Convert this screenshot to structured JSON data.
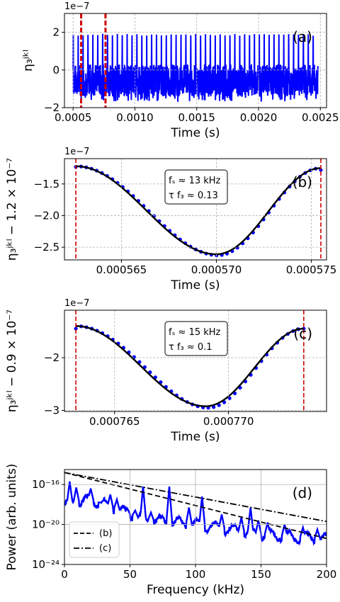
{
  "colors": {
    "series": "#0000ff",
    "marker": "#d00000",
    "fit": "#000000",
    "grid": "#b0b0b0"
  },
  "chart_data": [
    {
      "type": "line",
      "panel_label": "(a)",
      "xlabel": "Time (s)",
      "ylabel": "η₃ʲᵏˡ",
      "offset_text": "1e−7",
      "xlim": [
        0.00043,
        0.00255
      ],
      "ylim": [
        -2,
        3
      ],
      "xticks": [
        0.0005,
        0.001,
        0.0015,
        0.002,
        0.0025
      ],
      "xtick_labels": [
        "0.0005",
        "0.0010",
        "0.0015",
        "0.0020",
        "0.0025"
      ],
      "yticks": [
        -2,
        0,
        2
      ],
      "ytick_labels": [
        "−2",
        "0",
        "2"
      ],
      "grid": true,
      "signal": {
        "t_start": 0.0005,
        "t_end": 0.00248,
        "num_spikes": 50,
        "spike_peak": 2.5,
        "baseline_range": [
          -1.4,
          0.3
        ],
        "min_dip": -1.7
      },
      "vlines": [
        0.000565,
        0.000762
      ]
    },
    {
      "type": "scatter",
      "panel_label": "(b)",
      "xlabel": "Time (s)",
      "ylabel": "η₃ʲᵏˡ − 1.2 × 10⁻⁷",
      "offset_text": "1e−7",
      "annotation": [
        "fₛ ≈ 13 kHz",
        "τ f₃ ≈  0.13"
      ],
      "xlim": [
        0.000562,
        0.0005758
      ],
      "ylim": [
        -2.7,
        -1.1
      ],
      "xticks": [
        0.000565,
        0.00057,
        0.000575
      ],
      "xtick_labels": [
        "0.000565",
        "0.000570",
        "0.000575"
      ],
      "yticks": [
        -2.5,
        -2.0,
        -1.5
      ],
      "ytick_labels": [
        "−2.5",
        "−2.0",
        "−1.5"
      ],
      "grid": true,
      "curve": {
        "t0": 0.0005626,
        "t1": 0.0005755,
        "t_min": 0.00057,
        "y_min": -2.61,
        "y_left": -1.22,
        "y_right": -1.25
      },
      "points": {
        "count": 48,
        "left_value": -1.23,
        "right_value": -1.28
      },
      "vlines": [
        0.0005626,
        0.0005755
      ]
    },
    {
      "type": "scatter",
      "panel_label": "(c)",
      "xlabel": "Time (s)",
      "ylabel": "η₃ʲᵏˡ − 0.9 × 10⁻⁷",
      "offset_text": "1e−7",
      "annotation": [
        "fₛ ≈ 15 kHz",
        "τ f₃ ≈  0.1"
      ],
      "xlim": [
        0.0007628,
        0.0007743
      ],
      "ylim": [
        -3.02,
        -1.1
      ],
      "xticks": [
        0.000765,
        0.00077
      ],
      "xtick_labels": [
        "0.000765",
        "0.000770"
      ],
      "yticks": [
        -3,
        -2
      ],
      "ytick_labels": [
        "−3",
        "−2"
      ],
      "grid": true,
      "curve": {
        "t0": 0.0007633,
        "t1": 0.0007733,
        "t_min": 0.000769,
        "y_min": -2.92,
        "y_left": -1.4,
        "y_right": -1.45
      },
      "points": {
        "count": 44,
        "left_value": -1.45,
        "right_value": -1.45
      },
      "vlines": [
        0.0007633,
        0.0007733
      ]
    },
    {
      "type": "line",
      "panel_label": "(d)",
      "xlabel": "Frequency (kHz)",
      "ylabel": "Power (arb. units)",
      "xlim": [
        0,
        200
      ],
      "ylim_log10": [
        -24,
        -14.5
      ],
      "yscale": "log",
      "xticks": [
        0,
        50,
        100,
        150,
        200
      ],
      "xtick_labels": [
        "0",
        "50",
        "100",
        "150",
        "200"
      ],
      "yticks_log10": [
        -24,
        -20,
        -16
      ],
      "ytick_labels": [
        "10⁻²⁴",
        "10⁻²⁰",
        "10⁻¹⁶"
      ],
      "grid": true,
      "legend": {
        "position": "lower-left",
        "entries": [
          {
            "label": "(b)",
            "style": "dashed"
          },
          {
            "label": "(c)",
            "style": "dashdot"
          }
        ]
      },
      "series": [
        {
          "name": "(b)",
          "style": "dashed",
          "x": [
            0,
            200
          ],
          "log10_y": [
            -14.8,
            -21.4
          ]
        },
        {
          "name": "(c)",
          "style": "dashdot",
          "x": [
            0,
            200
          ],
          "log10_y": [
            -14.8,
            -19.7
          ]
        },
        {
          "style": "solid",
          "x": [
            0,
            20,
            60,
            100,
            150,
            200
          ],
          "log10_y": [
            -18.0,
            -17.5,
            -19.5,
            -20.0,
            -21.0,
            -21.5
          ],
          "peaks": [
            [
              4,
              -15.7
            ],
            [
              9,
              -16.3
            ],
            [
              20,
              -16.4
            ],
            [
              28,
              -17.8
            ],
            [
              35,
              -17.0
            ],
            [
              40,
              -17.5
            ],
            [
              48,
              -18.4
            ],
            [
              54,
              -18.6
            ],
            [
              60,
              -16.2
            ],
            [
              66,
              -18.8
            ],
            [
              80,
              -16.2
            ],
            [
              95,
              -18.3
            ],
            [
              105,
              -17.2
            ],
            [
              120,
              -19.0
            ],
            [
              135,
              -19.3
            ],
            [
              142,
              -18.3
            ],
            [
              148,
              -19.6
            ],
            [
              155,
              -19.8
            ],
            [
              168,
              -20.0
            ],
            [
              182,
              -20.3
            ],
            [
              193,
              -20.5
            ]
          ]
        }
      ]
    }
  ]
}
